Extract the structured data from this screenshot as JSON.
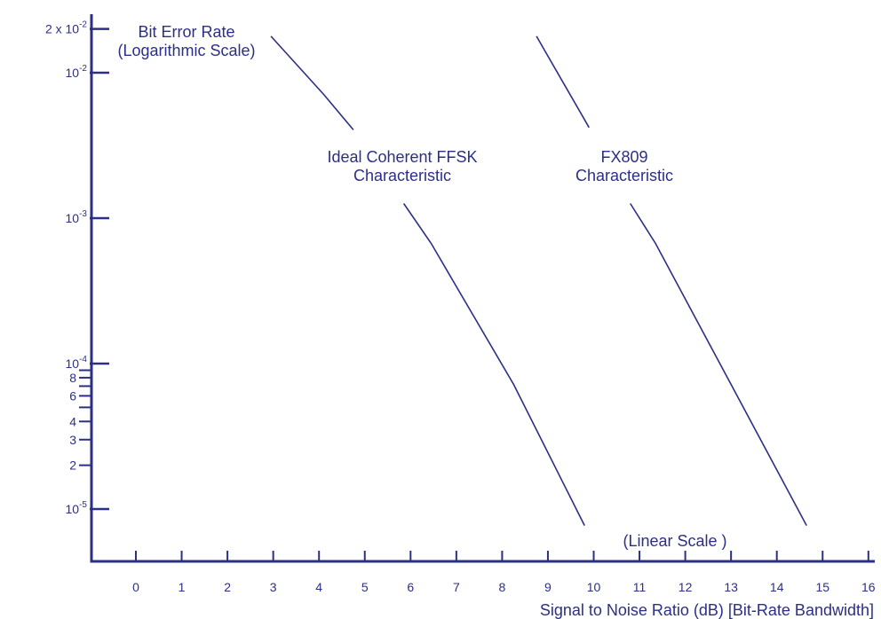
{
  "chart_data": {
    "type": "line",
    "y_scale": "log",
    "x_scale": "linear",
    "xlim": [
      -1.0,
      16.2
    ],
    "ylim": [
      7.4e-06,
      0.024
    ],
    "color": "#2b2f86",
    "xticks": [
      0,
      1,
      2,
      3,
      4,
      5,
      6,
      7,
      8,
      9,
      10,
      11,
      12,
      13,
      14,
      15,
      16
    ],
    "xlabel": "Signal to Noise Ratio (dB) [Bit-Rate Bandwidth]",
    "x_scale_note": "(Linear Scale )",
    "ylabel": [
      "Bit Error Rate",
      "(Logarithmic Scale)"
    ],
    "yticks_major": [
      {
        "value": 0.02,
        "base": "2 x 10",
        "exp": "-2"
      },
      {
        "value": 0.01,
        "base": "10",
        "exp": "-2"
      },
      {
        "value": 0.001,
        "base": "10",
        "exp": "-3"
      },
      {
        "value": 0.0001,
        "base": "10",
        "exp": "-4"
      },
      {
        "value": 1e-05,
        "base": "10",
        "exp": "-5"
      }
    ],
    "yticks_minor": [
      {
        "value": 9e-05,
        "label": ""
      },
      {
        "value": 8e-05,
        "label": "8"
      },
      {
        "value": 7e-05,
        "label": ""
      },
      {
        "value": 6e-05,
        "label": "6"
      },
      {
        "value": 5e-05,
        "label": ""
      },
      {
        "value": 4e-05,
        "label": "4"
      },
      {
        "value": 3e-05,
        "label": "3"
      },
      {
        "value": 2e-05,
        "label": "2"
      }
    ],
    "series": [
      {
        "label": [
          "Ideal Coherent FFSK",
          "Characteristic"
        ],
        "segments": [
          [
            [
              2.95,
              0.0178
            ],
            [
              4.1,
              0.0071
            ],
            [
              4.75,
              0.00405
            ]
          ],
          [
            [
              5.85,
              0.00126
            ],
            [
              6.45,
              0.00067
            ],
            [
              8.25,
              7.2e-05
            ],
            [
              9.8,
              7.7e-06
            ]
          ]
        ]
      },
      {
        "label": [
          "FX809",
          "Characteristic"
        ],
        "segments": [
          [
            [
              8.75,
              0.0178
            ],
            [
              9.9,
              0.0042
            ]
          ],
          [
            [
              10.8,
              0.00126
            ],
            [
              11.35,
              0.00067
            ],
            [
              13.0,
              7.2e-05
            ],
            [
              14.65,
              7.7e-06
            ]
          ]
        ]
      }
    ]
  }
}
